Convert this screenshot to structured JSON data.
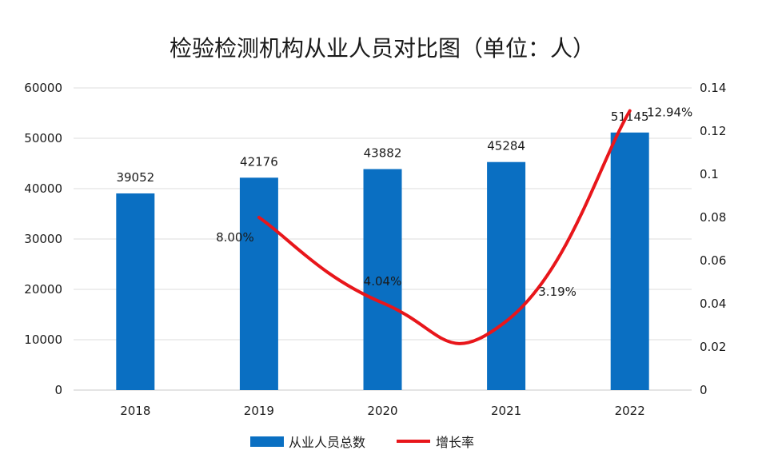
{
  "chart_data": {
    "type": "bar",
    "title": "检验检测机构从业人员对比图（单位：人）",
    "categories": [
      "2018",
      "2019",
      "2020",
      "2021",
      "2022"
    ],
    "series": [
      {
        "name": "从业人员总数",
        "type": "bar",
        "axis": "left",
        "color": "#0a6fc2",
        "values": [
          39052,
          42176,
          43882,
          45284,
          51145
        ],
        "labels": [
          "39052",
          "42176",
          "43882",
          "45284",
          "51145"
        ]
      },
      {
        "name": "增长率",
        "type": "line",
        "axis": "right",
        "color": "#e8161b",
        "values": [
          null,
          0.08,
          0.0404,
          0.0319,
          0.1294
        ],
        "labels": [
          "",
          "8.00%",
          "4.04%",
          "3.19%",
          "12.94%"
        ]
      }
    ],
    "y_left": {
      "min": 0,
      "max": 60000,
      "ticks": [
        "0",
        "10000",
        "20000",
        "30000",
        "40000",
        "50000",
        "60000"
      ]
    },
    "y_right": {
      "min": 0,
      "max": 0.14,
      "ticks": [
        "0",
        "0.02",
        "0.04",
        "0.06",
        "0.08",
        "0.1",
        "0.12",
        "0.14"
      ]
    },
    "grid": "horizontal",
    "legend_position": "bottom"
  }
}
